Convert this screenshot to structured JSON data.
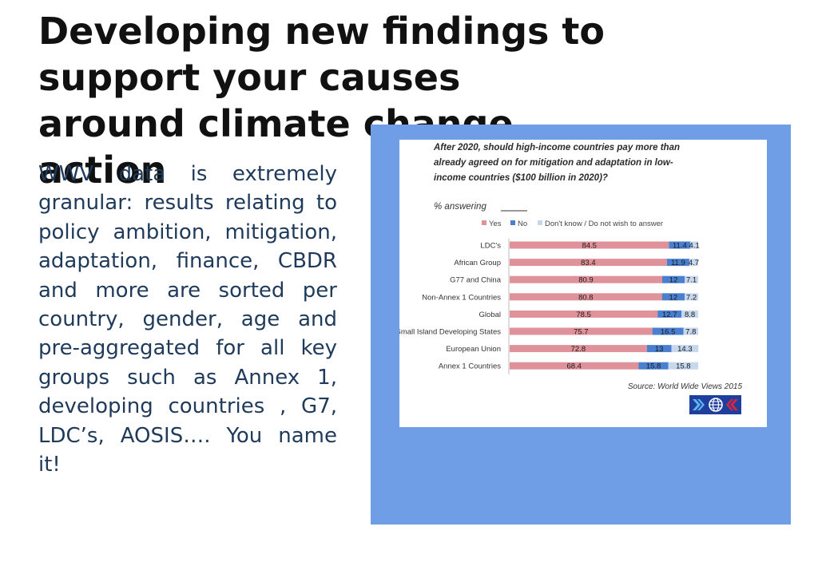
{
  "slide": {
    "title": "Developing new findings to support your causes around climate change action",
    "body": "WWV data is extremely granular: results relating to policy ambition, mitigation, adaptation, finance, CBDR and more are sorted per country, gender, age and pre-aggregated for all key groups such as Annex 1, developing countries , G7, LDC’s, AOSIS…. You name it!"
  },
  "colors": {
    "panel": "#6f9de6",
    "yes": "#e0929a",
    "no": "#4a7fd0",
    "dont_know": "#c7d7ee"
  },
  "chart_data": {
    "type": "bar",
    "orientation": "horizontal",
    "stacked": true,
    "title_lines": [
      "After 2020, should high-income countries pay more than",
      "already agreed on for mitigation and adaptation in low-",
      "income countries ($100 billion in 2020)?"
    ],
    "subtitle": "% answering",
    "categories": [
      "LDC's",
      "African Group",
      "G77 and China",
      "Non-Annex 1 Countries",
      "Global",
      "Small Island Developing States",
      "European Union",
      "Annex 1 Countries"
    ],
    "series": [
      {
        "name": "Yes",
        "values": [
          84.5,
          83.4,
          80.9,
          80.8,
          78.5,
          75.7,
          72.8,
          68.4
        ]
      },
      {
        "name": "No",
        "values": [
          11.4,
          11.9,
          12,
          12,
          12.7,
          16.5,
          13,
          15.8
        ]
      },
      {
        "name": "Don't know / Do not wish to answer",
        "values": [
          4.1,
          4.7,
          7.1,
          7.2,
          8.8,
          7.8,
          14.3,
          15.8
        ]
      }
    ],
    "xlim": [
      0,
      100
    ],
    "legend_position": "top",
    "grid": false,
    "source": "Source: World Wide Views 2015"
  }
}
